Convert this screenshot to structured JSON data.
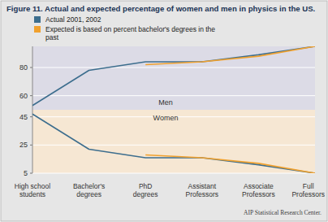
{
  "chart_data": {
    "type": "line",
    "title": "Figure 11.  Actual and expected percentage of women and men in physics in the US.",
    "categories": [
      "High school students",
      "Bachelor's degrees",
      "PhD degrees",
      "Assistant Professors",
      "Associate Professors",
      "Full Professors"
    ],
    "series": [
      {
        "name": "Actual 2001, 2002",
        "color": "#3d6e8e",
        "values": [
          53,
          78,
          84,
          84,
          89,
          95
        ]
      },
      {
        "name": "Actual 2001, 2002",
        "color": "#3d6e8e",
        "values": [
          47,
          22,
          16,
          16,
          11,
          5
        ]
      },
      {
        "name": "Expected is based on percent bachelor's degrees in the past",
        "color": "#f0a12e",
        "values": [
          null,
          null,
          82,
          84,
          88,
          95
        ]
      },
      {
        "name": "Expected is based on percent bachelor's degrees in the past",
        "color": "#f0a12e",
        "values": [
          null,
          null,
          18,
          16,
          12,
          5
        ]
      }
    ],
    "annotations": [
      "Men",
      "Women"
    ],
    "source": "AIP Statistical Research Center.",
    "ylim": [
      5,
      95
    ],
    "yticks": [
      5,
      25,
      45,
      60,
      80
    ],
    "grid": true,
    "legend": "top"
  }
}
